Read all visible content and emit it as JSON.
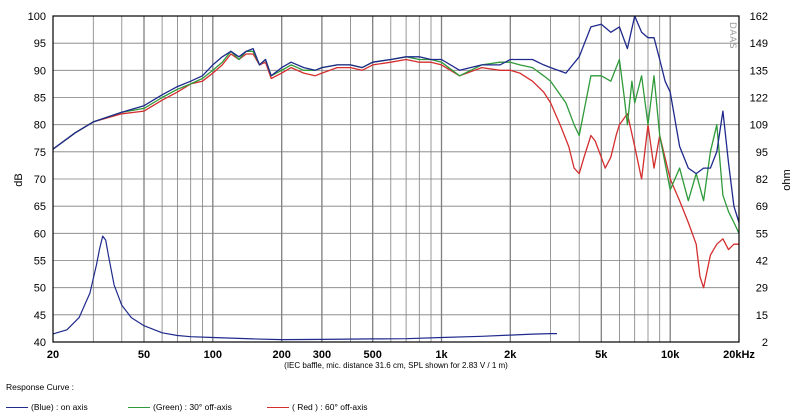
{
  "chart_data": {
    "type": "line",
    "x_scale": "log",
    "y_left_label": "dB",
    "y_right_label": "ohm",
    "caption": "(IEC baffle, mic. distance 31.6 cm, SPL shown for 2.83 V / 1 m)",
    "watermark": "DAAS",
    "xlim": [
      20,
      20000
    ],
    "ylim": [
      40,
      100
    ],
    "y2lim": [
      2,
      162
    ],
    "grid": true,
    "x_tick_labels": [
      {
        "v": 20,
        "t": "20"
      },
      {
        "v": 50,
        "t": "50"
      },
      {
        "v": 100,
        "t": "100"
      },
      {
        "v": 200,
        "t": "200"
      },
      {
        "v": 300,
        "t": "300"
      },
      {
        "v": 500,
        "t": "500"
      },
      {
        "v": 1000,
        "t": "1k"
      },
      {
        "v": 2000,
        "t": "2k"
      },
      {
        "v": 5000,
        "t": "5k"
      },
      {
        "v": 10000,
        "t": "10k"
      },
      {
        "v": 20000,
        "t": "20kHz"
      }
    ],
    "y_ticks": [
      "40",
      "45",
      "50",
      "55",
      "60",
      "65",
      "70",
      "75",
      "80",
      "85",
      "90",
      "95",
      "100"
    ],
    "y2_ticks": [
      "2",
      "15",
      "29",
      "42",
      "55",
      "69",
      "82",
      "95",
      "109",
      "122",
      "135",
      "149",
      "162"
    ],
    "legend_title": "Response Curve :",
    "series": [
      {
        "name": "(Blue)  : on axis",
        "color": "#1f2a8c",
        "x": [
          20,
          25,
          30,
          40,
          50,
          60,
          70,
          80,
          90,
          100,
          110,
          120,
          130,
          140,
          150,
          160,
          170,
          180,
          200,
          220,
          250,
          280,
          300,
          350,
          400,
          450,
          500,
          600,
          700,
          800,
          900,
          1000,
          1200,
          1500,
          1800,
          2000,
          2200,
          2500,
          2800,
          3000,
          3500,
          4000,
          4500,
          5000,
          5500,
          6000,
          6500,
          7000,
          7500,
          8000,
          8500,
          9000,
          9500,
          10000,
          11000,
          12000,
          13000,
          14000,
          15000,
          16000,
          17000,
          18000,
          19000,
          20000
        ],
        "y": [
          75.5,
          78.5,
          80.5,
          82.3,
          83.5,
          85.5,
          87,
          88,
          89,
          91,
          92.5,
          93.5,
          92.5,
          93.5,
          94,
          91,
          92,
          89,
          90.5,
          91.5,
          90.5,
          90,
          90.5,
          91,
          91,
          90.5,
          91.5,
          92,
          92.5,
          92.5,
          92,
          92,
          90,
          91,
          91,
          92,
          92,
          92,
          91,
          90.5,
          89.5,
          92.5,
          98,
          98.5,
          97,
          98,
          94,
          100,
          97,
          96,
          96,
          92,
          88,
          86,
          76,
          72,
          71,
          72,
          72,
          75,
          82.5,
          73,
          65,
          62
        ]
      },
      {
        "name": "(Green) : 30° off-axis",
        "color": "#2f9a3a",
        "x": [
          20,
          25,
          30,
          40,
          50,
          60,
          70,
          80,
          90,
          100,
          110,
          120,
          130,
          140,
          150,
          160,
          170,
          180,
          200,
          220,
          250,
          280,
          300,
          350,
          400,
          450,
          500,
          600,
          700,
          800,
          900,
          1000,
          1200,
          1500,
          1800,
          2000,
          2200,
          2500,
          2800,
          3000,
          3500,
          3800,
          4000,
          4500,
          5000,
          5500,
          6000,
          6300,
          6500,
          6800,
          7000,
          7500,
          8000,
          8500,
          9000,
          10000,
          11000,
          12000,
          13000,
          14000,
          15000,
          16000,
          17000,
          18000,
          19000,
          20000
        ],
        "y": [
          75.5,
          78.5,
          80.5,
          82.3,
          83,
          85,
          86.5,
          87.5,
          88.5,
          90,
          91.5,
          93.5,
          92,
          93.5,
          93.5,
          91,
          92,
          89,
          90,
          91,
          90,
          90,
          90.5,
          91,
          91,
          90.5,
          91.5,
          92,
          92.5,
          92,
          92,
          91.5,
          89,
          91,
          91.5,
          91.5,
          91,
          90.5,
          89,
          88,
          84,
          80,
          78,
          89,
          89,
          88,
          92,
          85,
          80,
          88,
          84,
          89,
          80,
          89,
          78,
          68,
          72,
          66,
          71,
          66,
          75,
          80,
          67,
          64,
          62,
          60
        ]
      },
      {
        "name": "( Red )  : 60° off-axis",
        "color": "#d42e2e",
        "x": [
          20,
          25,
          30,
          40,
          50,
          60,
          70,
          80,
          90,
          100,
          110,
          120,
          130,
          140,
          150,
          160,
          170,
          180,
          200,
          220,
          250,
          280,
          300,
          350,
          400,
          450,
          500,
          600,
          700,
          800,
          900,
          1000,
          1200,
          1500,
          1800,
          2000,
          2200,
          2500,
          2800,
          3000,
          3300,
          3600,
          3800,
          4000,
          4200,
          4500,
          4700,
          5000,
          5200,
          5500,
          5800,
          6000,
          6500,
          7000,
          7500,
          8000,
          8500,
          9000,
          10000,
          11000,
          12000,
          13000,
          13500,
          14000,
          15000,
          16000,
          17000,
          18000,
          19000,
          20000
        ],
        "y": [
          75.5,
          78.5,
          80.5,
          82,
          82.5,
          84.5,
          86,
          87.5,
          88,
          89.5,
          91,
          93,
          92,
          93,
          93,
          91,
          91.5,
          88.5,
          89.5,
          90.5,
          89.5,
          89,
          89.5,
          90.5,
          90.5,
          90,
          91,
          91.5,
          92,
          91.5,
          91.5,
          91,
          89,
          90.5,
          90,
          90,
          89.5,
          88,
          86,
          84,
          80,
          76,
          72,
          71,
          74,
          78,
          77,
          74,
          72,
          74,
          78,
          80,
          82,
          76,
          70,
          80,
          72,
          78,
          70,
          66,
          62,
          58,
          52,
          50,
          56,
          58,
          59,
          57,
          58,
          58
        ]
      }
    ],
    "impedance": {
      "name": "impedance (ohm)",
      "color": "#1f2a8c",
      "x": [
        20,
        23,
        26,
        29,
        31,
        32,
        33,
        34,
        35,
        37,
        40,
        44,
        50,
        60,
        70,
        80,
        100,
        150,
        200,
        300,
        500,
        700,
        1000,
        1500,
        2000,
        2500,
        3000,
        3200
      ],
      "y": [
        6,
        8,
        14,
        26,
        40,
        48,
        54,
        52,
        44,
        30,
        20,
        14,
        10,
        6.5,
        5.2,
        4.6,
        4.2,
        3.5,
        3.2,
        3.3,
        3.5,
        3.6,
        4.2,
        4.8,
        5.4,
        5.9,
        6.1,
        6.1
      ]
    }
  }
}
